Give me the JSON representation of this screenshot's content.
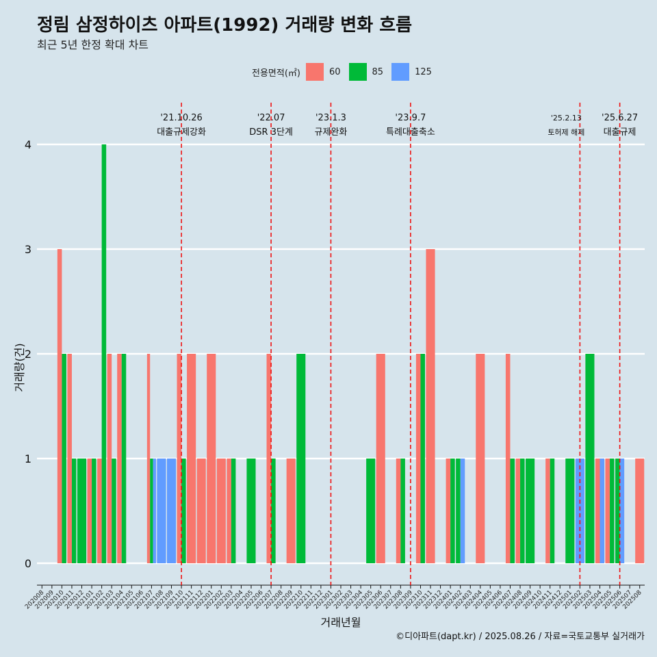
{
  "title": "정림 삼정하이츠 아파트(1992) 거래량 변화 흐름",
  "subtitle": "최근 5년 한정 확대 차트",
  "legend": {
    "title": "전용면적(㎡)",
    "items": [
      {
        "label": "60",
        "color": "#f8766d"
      },
      {
        "label": "85",
        "color": "#00ba38"
      },
      {
        "label": "125",
        "color": "#619cff"
      }
    ]
  },
  "caption": "©디아파트(dapt.kr) / 2025.08.26 / 자료=국토교통부 실거래가",
  "chart_data": {
    "type": "bar",
    "xlabel": "거래년월",
    "ylabel": "거래량(건)",
    "ylim": [
      0,
      4
    ],
    "yticks": [
      0,
      1,
      2,
      3,
      4
    ],
    "grid": "horizontal",
    "legend_position": "top",
    "categories": [
      "202008",
      "202009",
      "202010",
      "202011",
      "202012",
      "202101",
      "202102",
      "202103",
      "202104",
      "202105",
      "202106",
      "202107",
      "202108",
      "202109",
      "202110",
      "202111",
      "202112",
      "202201",
      "202202",
      "202203",
      "202204",
      "202205",
      "202206",
      "202207",
      "202208",
      "202209",
      "202210",
      "202211",
      "202212",
      "202301",
      "202302",
      "202303",
      "202304",
      "202305",
      "202306",
      "202307",
      "202308",
      "202309",
      "202310",
      "202311",
      "202312",
      "202401",
      "202402",
      "202403",
      "202404",
      "202405",
      "202406",
      "202407",
      "202408",
      "202409",
      "202410",
      "202411",
      "202412",
      "202501",
      "202502",
      "202503",
      "202504",
      "202505",
      "202506",
      "202507",
      "202508"
    ],
    "series": [
      {
        "name": "60",
        "color": "#f8766d",
        "values": [
          0,
          0,
          3,
          2,
          0,
          1,
          1,
          2,
          2,
          0,
          0,
          2,
          0,
          0,
          2,
          2,
          1,
          2,
          1,
          1,
          0,
          0,
          0,
          2,
          0,
          1,
          0,
          0,
          0,
          0,
          0,
          0,
          0,
          0,
          2,
          0,
          1,
          0,
          2,
          3,
          0,
          1,
          0,
          0,
          2,
          0,
          0,
          2,
          1,
          0,
          0,
          1,
          0,
          0,
          0,
          0,
          1,
          1,
          0,
          0,
          1
        ]
      },
      {
        "name": "85",
        "color": "#00ba38",
        "values": [
          0,
          0,
          2,
          1,
          1,
          1,
          4,
          1,
          2,
          0,
          0,
          1,
          0,
          0,
          1,
          0,
          0,
          0,
          0,
          1,
          0,
          1,
          0,
          1,
          0,
          0,
          2,
          0,
          0,
          0,
          0,
          0,
          0,
          1,
          0,
          0,
          1,
          0,
          2,
          0,
          0,
          1,
          1,
          0,
          0,
          0,
          0,
          1,
          1,
          1,
          0,
          1,
          0,
          1,
          0,
          2,
          0,
          1,
          1,
          0,
          0
        ]
      },
      {
        "name": "125",
        "color": "#619cff",
        "values": [
          0,
          0,
          0,
          0,
          0,
          0,
          0,
          0,
          0,
          0,
          0,
          1,
          1,
          1,
          0,
          0,
          0,
          0,
          0,
          0,
          0,
          0,
          0,
          0,
          0,
          0,
          0,
          0,
          0,
          0,
          0,
          0,
          0,
          0,
          0,
          0,
          0,
          0,
          0,
          0,
          0,
          0,
          1,
          0,
          0,
          0,
          0,
          0,
          0,
          0,
          0,
          0,
          0,
          0,
          1,
          0,
          1,
          0,
          1,
          0,
          0
        ]
      }
    ],
    "annotations": [
      {
        "date": "'21.10.26",
        "label": "대출규제강화",
        "category": "202110"
      },
      {
        "date": "'22.07",
        "label": "DSR 3단계",
        "category": "202207"
      },
      {
        "date": "'23.1.3",
        "label": "규제완화",
        "category": "202301"
      },
      {
        "date": "'23.9.7",
        "label": "특례대출축소",
        "category": "202309"
      },
      {
        "date": "'25.2.13",
        "label": "토허제 해제",
        "category": "202502"
      },
      {
        "date": "'25.6.27",
        "label": "대출규제",
        "category": "202506"
      }
    ]
  }
}
